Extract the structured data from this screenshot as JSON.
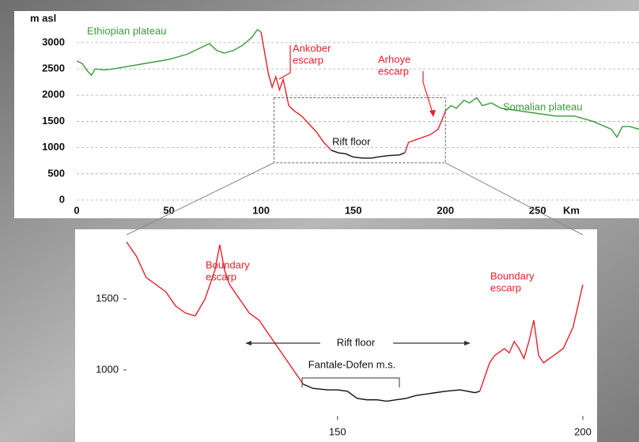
{
  "chart_data": [
    {
      "type": "line",
      "y_label": "m asl",
      "x_label": "Km",
      "xlim": [
        0,
        305
      ],
      "ylim": [
        0,
        3300
      ],
      "xticks": [
        0,
        50,
        100,
        150,
        200,
        250
      ],
      "yticks": [
        0,
        500,
        1000,
        1500,
        2000,
        2500,
        3000
      ],
      "grid": true,
      "series": [
        {
          "color": "#3a9a3a",
          "x": [
            0,
            3,
            6,
            8,
            10,
            15,
            20,
            30,
            40,
            50,
            60,
            70,
            72,
            76,
            80,
            85,
            90,
            95,
            98,
            100
          ],
          "values": [
            2650,
            2600,
            2450,
            2380,
            2500,
            2480,
            2500,
            2560,
            2620,
            2680,
            2780,
            2950,
            2980,
            2850,
            2800,
            2850,
            2950,
            3100,
            3250,
            3200
          ]
        },
        {
          "color": "#e8202a",
          "x": [
            100,
            102,
            104,
            106,
            108,
            110,
            112,
            115,
            118,
            122,
            126,
            130,
            134,
            138
          ],
          "values": [
            3200,
            2800,
            2400,
            2150,
            2350,
            2100,
            2300,
            1800,
            1700,
            1600,
            1450,
            1300,
            1100,
            950
          ]
        },
        {
          "color": "#111111",
          "x": [
            138,
            142,
            146,
            150,
            155,
            160,
            165,
            170,
            175,
            178
          ],
          "values": [
            950,
            900,
            880,
            820,
            800,
            800,
            830,
            850,
            860,
            900
          ]
        },
        {
          "color": "#e8202a",
          "x": [
            178,
            180,
            184,
            188,
            192,
            196,
            199,
            200
          ],
          "values": [
            900,
            1100,
            1150,
            1200,
            1250,
            1350,
            1600,
            1700
          ]
        },
        {
          "color": "#3a9a3a",
          "x": [
            200,
            203,
            206,
            210,
            213,
            217,
            220,
            225,
            230,
            240,
            250,
            260,
            270,
            280,
            290,
            293,
            296,
            300,
            305
          ],
          "values": [
            1700,
            1800,
            1750,
            1900,
            1850,
            1950,
            1800,
            1850,
            1750,
            1700,
            1650,
            1600,
            1600,
            1500,
            1350,
            1200,
            1400,
            1400,
            1350
          ]
        }
      ],
      "annotations": [
        {
          "lines": [
            "Ethiopian plateau"
          ],
          "color": "#3a9a3a"
        },
        {
          "lines": [
            "Ankober",
            "escarp"
          ],
          "color": "#e8202a"
        },
        {
          "lines": [
            "Arhoye",
            "escarp"
          ],
          "color": "#e8202a"
        },
        {
          "lines": [
            "Rift floor"
          ],
          "color": "#111111"
        },
        {
          "lines": [
            "Somalian plateau"
          ],
          "color": "#3a9a3a"
        }
      ]
    },
    {
      "type": "line",
      "xlim": [
        107,
        200
      ],
      "ylim": [
        710,
        1950
      ],
      "xticks": [
        150,
        200
      ],
      "yticks": [
        1000,
        1500
      ],
      "grid": false,
      "series": [
        {
          "color": "#e8202a",
          "x": [
            107,
            109,
            111,
            113,
            115,
            117,
            119,
            121,
            123,
            125,
            126,
            127,
            128,
            130,
            132,
            134,
            136,
            138,
            140,
            142,
            143
          ],
          "values": [
            1900,
            1800,
            1650,
            1600,
            1550,
            1450,
            1400,
            1380,
            1500,
            1700,
            1880,
            1700,
            1600,
            1500,
            1400,
            1350,
            1250,
            1150,
            1050,
            950,
            900
          ]
        },
        {
          "color": "#111111",
          "x": [
            143,
            145,
            148,
            150,
            152,
            154,
            156,
            158,
            160,
            162,
            164,
            166,
            168,
            170,
            172,
            175,
            178,
            179
          ],
          "values": [
            900,
            870,
            860,
            860,
            850,
            800,
            790,
            790,
            780,
            790,
            800,
            820,
            830,
            840,
            850,
            860,
            840,
            850
          ]
        },
        {
          "color": "#e8202a",
          "x": [
            179,
            180,
            181,
            182,
            184,
            185,
            186,
            187,
            188,
            189,
            190,
            191,
            192,
            194,
            196,
            198,
            199,
            200
          ],
          "values": [
            850,
            950,
            1050,
            1100,
            1150,
            1120,
            1200,
            1150,
            1080,
            1200,
            1350,
            1100,
            1050,
            1100,
            1150,
            1300,
            1450,
            1600
          ]
        }
      ],
      "annotations": [
        {
          "lines": [
            "Boundary",
            "escarp"
          ],
          "color": "#e8202a"
        },
        {
          "lines": [
            "Boundary",
            "escarp"
          ],
          "color": "#e8202a"
        },
        {
          "lines": [
            "Rift floor"
          ],
          "color": "#111111"
        },
        {
          "lines": [
            "Fantale-Dofen m.s."
          ],
          "color": "#111111"
        }
      ]
    }
  ]
}
